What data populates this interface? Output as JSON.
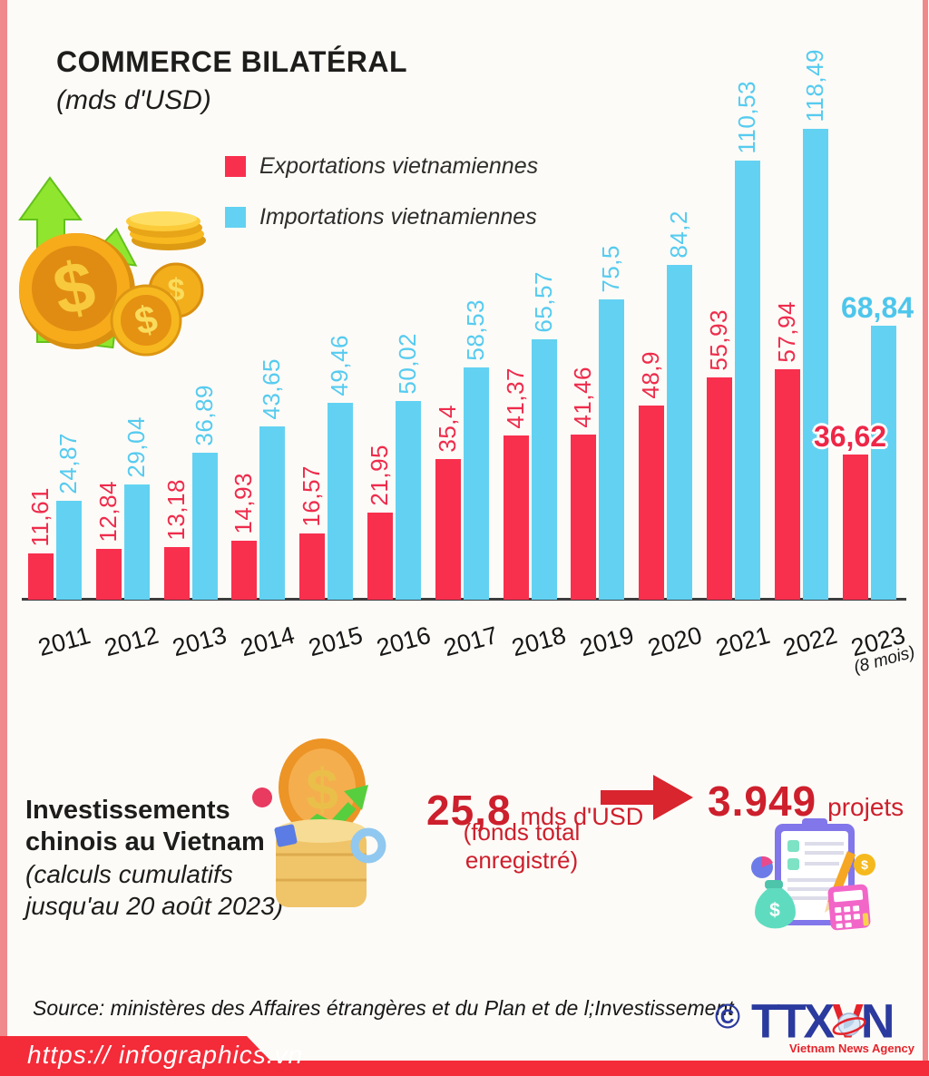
{
  "title": "COMMERCE BILATÉRAL",
  "subtitle": "(mds d'USD)",
  "legend": {
    "exports": "Exportations vietnamiennes",
    "imports": "Importations vietnamiennes"
  },
  "colors": {
    "export_bar": "#f8304e",
    "import_bar": "#63d2f2",
    "accent_red": "#cd1f2c",
    "footer_red": "#f42b38",
    "border_pink": "#f0898c",
    "logo_blue": "#2b3a9e",
    "logo_red": "#e6232b"
  },
  "chart_data": {
    "type": "bar",
    "title": "COMMERCE BILATÉRAL (mds d'USD)",
    "categories": [
      "2011",
      "2012",
      "2013",
      "2014",
      "2015",
      "2016",
      "2017",
      "2018",
      "2019",
      "2020",
      "2021",
      "2022",
      "2023"
    ],
    "last_category_note": "(8 mois)",
    "series": [
      {
        "name": "Exportations vietnamiennes",
        "color": "#f8304e",
        "values": [
          11.61,
          12.84,
          13.18,
          14.93,
          16.57,
          21.95,
          35.4,
          41.37,
          41.46,
          48.9,
          55.93,
          57.94,
          36.62
        ],
        "labels": [
          "11,61",
          "12,84",
          "13,18",
          "14,93",
          "16,57",
          "21,95",
          "35,4",
          "41,37",
          "41,46",
          "48,9",
          "55,93",
          "57,94",
          "36,62"
        ]
      },
      {
        "name": "Importations vietnamiennes",
        "color": "#63d2f2",
        "values": [
          24.87,
          29.04,
          36.89,
          43.65,
          49.46,
          50.02,
          58.53,
          65.57,
          75.5,
          84.2,
          110.53,
          118.49,
          68.84
        ],
        "labels": [
          "24,87",
          "29,04",
          "36,89",
          "43,65",
          "49,46",
          "50,02",
          "58,53",
          "65,57",
          "75,5",
          "84,2",
          "110,53",
          "118,49",
          "68,84"
        ]
      }
    ],
    "ylim": [
      0,
      120
    ],
    "grid": false,
    "legend_position": "top-left",
    "value_label_style": "rotated 90° above bars; final year shown horizontal bold"
  },
  "investment": {
    "heading_line1": "Investissements",
    "heading_line2": "chinois au Vietnam",
    "subheading_line1": "(calculs cumulatifs",
    "subheading_line2": "jusqu'au 20 août 2023)",
    "amount": "25,8",
    "amount_unit": "mds d'USD",
    "amount_note": "(fonds total enregistré)",
    "projects": "3.949",
    "projects_unit": "projets"
  },
  "source": "Source: ministères des Affaires étrangères et du Plan et de l;Investissement",
  "logo": {
    "copyright": "©",
    "part1": "TTX",
    "part2": "V",
    "part3": "N",
    "tagline": "Vietnam News Agency"
  },
  "footer": {
    "url": "https:// infographics.vn"
  }
}
